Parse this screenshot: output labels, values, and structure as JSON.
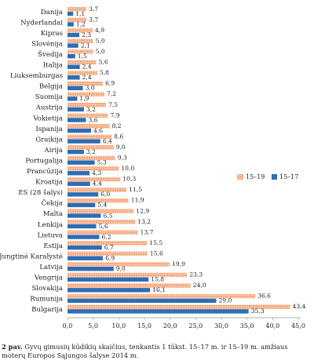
{
  "chart_data": {
    "type": "bar",
    "orientation": "horizontal",
    "categories": [
      "Danija",
      "Nyderlandai",
      "Kipras",
      "Slovėnija",
      "Švedija",
      "Italija",
      "Liuksemburgas",
      "Belgija",
      "Suomija",
      "Austrija",
      "Vokietija",
      "Ispanija",
      "Graikija",
      "Airija",
      "Portugalija",
      "Prancūzija",
      "Kroatija",
      "ES (28 šalys)",
      "Čekija",
      "Malta",
      "Lenkija",
      "Lietuva",
      "Estija",
      "Jungtinė Karalystė",
      "Latvija",
      "Vengrija",
      "Slovakija",
      "Rumunija",
      "Bulgarija"
    ],
    "series": [
      {
        "name": "15–19",
        "color": "#f4ad84",
        "pattern": "dotted",
        "values": [
          3.7,
          3.7,
          4.9,
          5.0,
          5.0,
          5.6,
          5.8,
          6.9,
          7.2,
          7.5,
          7.9,
          8.2,
          8.6,
          9.0,
          9.3,
          10.0,
          10.3,
          11.5,
          11.9,
          12.9,
          13.2,
          13.7,
          15.5,
          15.6,
          19.9,
          23.3,
          24.0,
          36.6,
          43.4
        ]
      },
      {
        "name": "15–17",
        "color": "#2e6db4",
        "pattern": "solid",
        "values": [
          1.1,
          1.2,
          2.3,
          2.1,
          1.5,
          2.4,
          2.4,
          3.0,
          1.9,
          3.2,
          3.6,
          4.6,
          6.4,
          3.2,
          5.3,
          4.3,
          4.4,
          6.0,
          5.4,
          6.5,
          5.6,
          6.2,
          6.7,
          6.9,
          9.0,
          15.8,
          16.1,
          29.0,
          35.3
        ]
      }
    ],
    "value_labels": {
      "15–19": [
        "3,7",
        "3,7",
        "4,9",
        "5,0",
        "5,0",
        "5,6",
        "5,8",
        "6,9",
        "7,2",
        "7,5",
        "7,9",
        "8,2",
        "8,6",
        "9,0",
        "9,3",
        "10,0",
        "10,3",
        "11,5",
        "11,9",
        "12,9",
        "13,2",
        "13,7",
        "15,5",
        "15,6",
        "19,9",
        "23,3",
        "24,0",
        "36,6",
        "43,4"
      ],
      "15–17": [
        "1,1",
        "1,2",
        "2,3",
        "2,1",
        "1,5",
        "2,4",
        "2,4",
        "3,0",
        "1,9",
        "3,2",
        "3,6",
        "4,6",
        "6,4",
        "3,2",
        "5,3",
        "4,3",
        "4,4",
        "6,0",
        "5,4",
        "6,5",
        "5,6",
        "6,2",
        "6,7",
        "6,9",
        "9,0",
        "15,8",
        "16,1",
        "29,0",
        "35,3"
      ]
    },
    "xlim": [
      0,
      45
    ],
    "xticks": [
      "0,0",
      "5,0",
      "10,0",
      "15,0",
      "20,0",
      "25,0",
      "30,0",
      "35,0",
      "40,0",
      "45,0"
    ],
    "grid": false,
    "legend_position": "right"
  },
  "caption": {
    "number": "2 pav.",
    "text": "Gyvų gimusių kūdikių skaičius, tenkantis 1 tūkst. 15–17 m. ir 15–19 m. amžiaus moterų Europos Sąjungos šalyse 2014 m."
  }
}
